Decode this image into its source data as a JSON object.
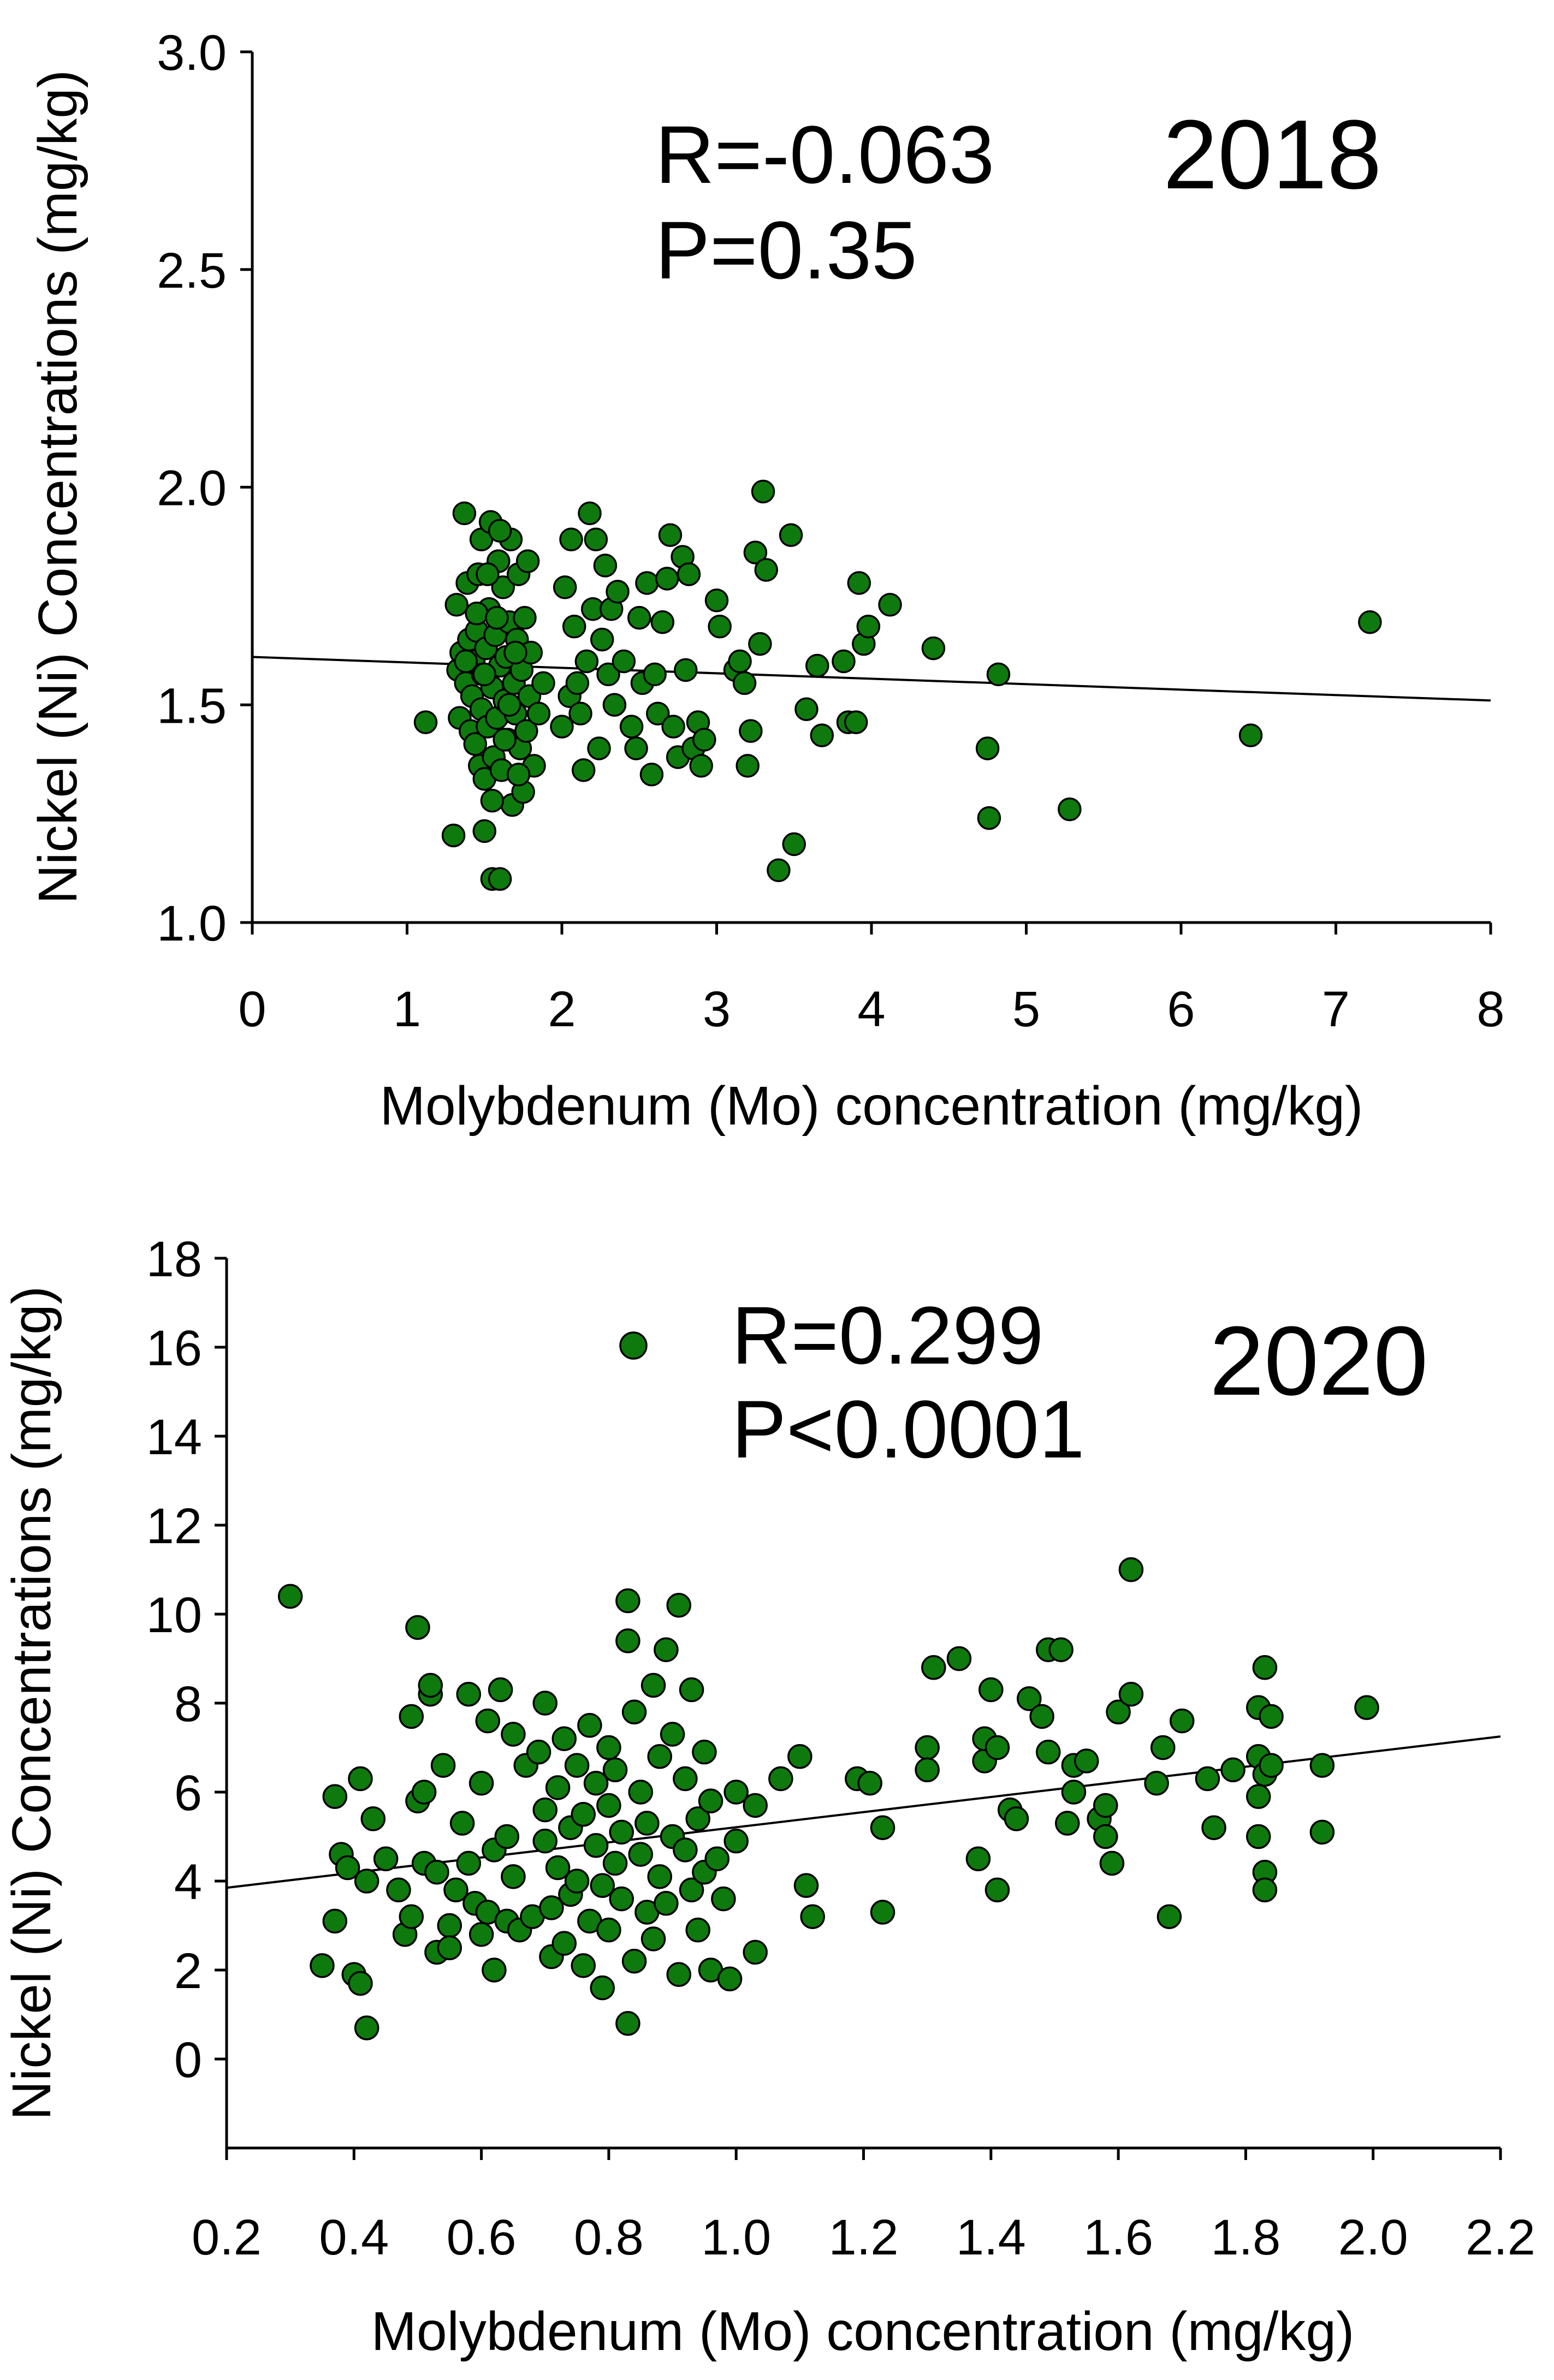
{
  "chart_data": [
    {
      "type": "scatter",
      "year_label": "2018",
      "stats": {
        "r": "R=-0.063",
        "p": "P=0.35"
      },
      "xlabel": "Molybdenum (Mo) concentration (mg/kg)",
      "ylabel": "Nickel (Ni) Concentrations (mg/kg)",
      "xlim": [
        0,
        8
      ],
      "ylim": [
        1.0,
        3.0
      ],
      "x_ticks": [
        0,
        1,
        2,
        3,
        4,
        5,
        6,
        7,
        8
      ],
      "x_tick_labels": [
        "0",
        "1",
        "2",
        "3",
        "4",
        "5",
        "6",
        "7",
        "8"
      ],
      "y_ticks": [
        1.0,
        1.5,
        2.0,
        2.5,
        3.0
      ],
      "y_tick_labels": [
        "1.0",
        "1.5",
        "2.0",
        "2.5",
        "3.0"
      ],
      "trendline": [
        [
          0,
          1.61
        ],
        [
          8,
          1.51
        ]
      ],
      "point_color": "#0e7a0e",
      "points": [
        [
          1.12,
          1.46
        ],
        [
          1.3,
          1.2
        ],
        [
          1.32,
          1.73
        ],
        [
          1.33,
          1.58
        ],
        [
          1.34,
          1.47
        ],
        [
          1.35,
          1.62
        ],
        [
          1.37,
          1.94
        ],
        [
          1.38,
          1.55
        ],
        [
          1.39,
          1.78
        ],
        [
          1.4,
          1.65
        ],
        [
          1.41,
          1.44
        ],
        [
          1.42,
          1.52
        ],
        [
          1.43,
          1.6
        ],
        [
          1.44,
          1.41
        ],
        [
          1.45,
          1.67
        ],
        [
          1.46,
          1.8
        ],
        [
          1.47,
          1.36
        ],
        [
          1.48,
          1.88
        ],
        [
          1.48,
          1.49
        ],
        [
          1.49,
          1.57
        ],
        [
          1.5,
          1.33
        ],
        [
          1.5,
          1.21
        ],
        [
          1.51,
          1.63
        ],
        [
          1.52,
          1.45
        ],
        [
          1.53,
          1.72
        ],
        [
          1.54,
          1.92
        ],
        [
          1.55,
          1.1
        ],
        [
          1.55,
          1.54
        ],
        [
          1.56,
          1.38
        ],
        [
          1.57,
          1.66
        ],
        [
          1.58,
          1.47
        ],
        [
          1.59,
          1.83
        ],
        [
          1.6,
          1.1
        ],
        [
          1.6,
          1.59
        ],
        [
          1.61,
          1.35
        ],
        [
          1.62,
          1.77
        ],
        [
          1.63,
          1.51
        ],
        [
          1.64,
          1.61
        ],
        [
          1.65,
          1.42
        ],
        [
          1.66,
          1.69
        ],
        [
          1.67,
          1.88
        ],
        [
          1.68,
          1.27
        ],
        [
          1.69,
          1.55
        ],
        [
          1.7,
          1.48
        ],
        [
          1.71,
          1.65
        ],
        [
          1.72,
          1.8
        ],
        [
          1.73,
          1.4
        ],
        [
          1.74,
          1.58
        ],
        [
          1.75,
          1.3
        ],
        [
          1.76,
          1.7
        ],
        [
          1.77,
          1.44
        ],
        [
          1.78,
          1.83
        ],
        [
          1.79,
          1.52
        ],
        [
          1.8,
          1.62
        ],
        [
          1.82,
          1.36
        ],
        [
          1.85,
          1.48
        ],
        [
          1.88,
          1.55
        ],
        [
          1.55,
          1.28
        ],
        [
          1.45,
          1.71
        ],
        [
          1.6,
          1.9
        ],
        [
          1.5,
          1.57
        ],
        [
          1.66,
          1.5
        ],
        [
          1.72,
          1.34
        ],
        [
          1.38,
          1.6
        ],
        [
          1.63,
          1.42
        ],
        [
          1.52,
          1.8
        ],
        [
          1.7,
          1.62
        ],
        [
          1.58,
          1.7
        ],
        [
          2.0,
          1.45
        ],
        [
          2.02,
          1.77
        ],
        [
          2.05,
          1.52
        ],
        [
          2.06,
          1.88
        ],
        [
          2.08,
          1.68
        ],
        [
          2.1,
          1.55
        ],
        [
          2.12,
          1.48
        ],
        [
          2.14,
          1.35
        ],
        [
          2.16,
          1.6
        ],
        [
          2.18,
          1.94
        ],
        [
          2.2,
          1.72
        ],
        [
          2.22,
          1.88
        ],
        [
          2.24,
          1.4
        ],
        [
          2.26,
          1.65
        ],
        [
          2.28,
          1.82
        ],
        [
          2.3,
          1.57
        ],
        [
          2.32,
          1.72
        ],
        [
          2.34,
          1.5
        ],
        [
          2.36,
          1.76
        ],
        [
          2.4,
          1.6
        ],
        [
          2.45,
          1.45
        ],
        [
          2.48,
          1.4
        ],
        [
          2.5,
          1.7
        ],
        [
          2.52,
          1.55
        ],
        [
          2.55,
          1.78
        ],
        [
          2.58,
          1.34
        ],
        [
          2.6,
          1.57
        ],
        [
          2.62,
          1.48
        ],
        [
          2.65,
          1.69
        ],
        [
          2.68,
          1.79
        ],
        [
          2.7,
          1.89
        ],
        [
          2.72,
          1.45
        ],
        [
          2.75,
          1.38
        ],
        [
          2.78,
          1.84
        ],
        [
          2.8,
          1.58
        ],
        [
          2.82,
          1.8
        ],
        [
          2.85,
          1.4
        ],
        [
          2.88,
          1.46
        ],
        [
          2.9,
          1.36
        ],
        [
          2.92,
          1.42
        ],
        [
          3.0,
          1.74
        ],
        [
          3.02,
          1.68
        ],
        [
          3.12,
          1.58
        ],
        [
          3.15,
          1.6
        ],
        [
          3.18,
          1.55
        ],
        [
          3.2,
          1.36
        ],
        [
          3.22,
          1.44
        ],
        [
          3.25,
          1.85
        ],
        [
          3.28,
          1.64
        ],
        [
          3.3,
          1.99
        ],
        [
          3.32,
          1.81
        ],
        [
          3.4,
          1.12
        ],
        [
          3.48,
          1.89
        ],
        [
          3.5,
          1.18
        ],
        [
          3.58,
          1.49
        ],
        [
          3.65,
          1.59
        ],
        [
          3.68,
          1.43
        ],
        [
          3.82,
          1.6
        ],
        [
          3.85,
          1.46
        ],
        [
          3.9,
          1.46
        ],
        [
          3.92,
          1.78
        ],
        [
          3.95,
          1.64
        ],
        [
          3.98,
          1.68
        ],
        [
          4.12,
          1.73
        ],
        [
          4.4,
          1.63
        ],
        [
          4.75,
          1.4
        ],
        [
          4.76,
          1.24
        ],
        [
          4.82,
          1.57
        ],
        [
          5.28,
          1.26
        ],
        [
          6.45,
          1.43
        ],
        [
          7.22,
          1.69
        ]
      ]
    },
    {
      "type": "scatter",
      "year_label": "2020",
      "stats": {
        "r": "R=0.299",
        "p": "P<0.0001"
      },
      "xlabel": "Molybdenum (Mo) concentration (mg/kg)",
      "ylabel": "Nickel (Ni) Concentrations (mg/kg)",
      "xlim": [
        0.2,
        2.2
      ],
      "ylim": [
        -2,
        18
      ],
      "x_ticks": [
        0.2,
        0.4,
        0.6,
        0.8,
        1.0,
        1.2,
        1.4,
        1.6,
        1.8,
        2.0,
        2.2
      ],
      "x_tick_labels": [
        "0.2",
        "0.4",
        "0.6",
        "0.8",
        "1.0",
        "1.2",
        "1.4",
        "1.6",
        "1.8",
        "2.0",
        "2.2"
      ],
      "y_ticks": [
        0,
        2,
        4,
        6,
        8,
        10,
        12,
        14,
        16,
        18
      ],
      "y_tick_labels": [
        "0",
        "2",
        "4",
        "6",
        "8",
        "10",
        "12",
        "14",
        "16",
        "18"
      ],
      "trendline": [
        [
          0.2,
          3.85
        ],
        [
          2.2,
          7.25
        ]
      ],
      "point_color": "#0e7a0e",
      "points": [
        [
          0.3,
          10.4
        ],
        [
          0.35,
          2.1
        ],
        [
          0.37,
          3.1
        ],
        [
          0.37,
          5.9
        ],
        [
          0.38,
          4.6
        ],
        [
          0.39,
          4.3
        ],
        [
          0.4,
          1.9
        ],
        [
          0.41,
          1.7
        ],
        [
          0.41,
          6.3
        ],
        [
          0.42,
          0.7
        ],
        [
          0.42,
          4.0
        ],
        [
          0.43,
          5.4
        ],
        [
          0.45,
          4.5
        ],
        [
          0.47,
          3.8
        ],
        [
          0.48,
          2.8
        ],
        [
          0.49,
          3.2
        ],
        [
          0.49,
          7.7
        ],
        [
          0.5,
          9.7
        ],
        [
          0.5,
          5.8
        ],
        [
          0.51,
          4.4
        ],
        [
          0.51,
          6.0
        ],
        [
          0.52,
          8.2
        ],
        [
          0.52,
          8.4
        ],
        [
          0.53,
          2.4
        ],
        [
          0.53,
          4.2
        ],
        [
          0.54,
          6.6
        ],
        [
          0.55,
          3.0
        ],
        [
          0.55,
          2.5
        ],
        [
          0.56,
          3.8
        ],
        [
          0.57,
          5.3
        ],
        [
          0.58,
          8.2
        ],
        [
          0.58,
          4.4
        ],
        [
          0.59,
          3.5
        ],
        [
          0.6,
          2.8
        ],
        [
          0.6,
          6.2
        ],
        [
          0.61,
          7.6
        ],
        [
          0.61,
          3.3
        ],
        [
          0.62,
          4.7
        ],
        [
          0.62,
          2.0
        ],
        [
          0.63,
          8.3
        ],
        [
          0.64,
          5.0
        ],
        [
          0.64,
          3.1
        ],
        [
          0.65,
          7.3
        ],
        [
          0.65,
          4.1
        ],
        [
          0.66,
          2.9
        ],
        [
          0.67,
          6.6
        ],
        [
          0.68,
          3.2
        ],
        [
          0.69,
          6.9
        ],
        [
          0.7,
          5.6
        ],
        [
          0.7,
          4.9
        ],
        [
          0.7,
          8.0
        ],
        [
          0.71,
          2.3
        ],
        [
          0.71,
          3.4
        ],
        [
          0.72,
          6.1
        ],
        [
          0.72,
          4.3
        ],
        [
          0.73,
          7.2
        ],
        [
          0.73,
          2.6
        ],
        [
          0.74,
          5.2
        ],
        [
          0.74,
          3.7
        ],
        [
          0.75,
          6.6
        ],
        [
          0.75,
          4.0
        ],
        [
          0.76,
          2.1
        ],
        [
          0.76,
          5.5
        ],
        [
          0.77,
          7.5
        ],
        [
          0.77,
          3.1
        ],
        [
          0.78,
          4.8
        ],
        [
          0.78,
          6.2
        ],
        [
          0.79,
          1.6
        ],
        [
          0.79,
          3.9
        ],
        [
          0.8,
          5.7
        ],
        [
          0.8,
          7.0
        ],
        [
          0.8,
          2.9
        ],
        [
          0.81,
          4.4
        ],
        [
          0.81,
          6.5
        ],
        [
          0.82,
          3.6
        ],
        [
          0.82,
          5.1
        ],
        [
          0.83,
          10.3
        ],
        [
          0.83,
          0.8
        ],
        [
          0.83,
          9.4
        ],
        [
          0.84,
          2.2
        ],
        [
          0.84,
          7.8
        ],
        [
          0.85,
          4.6
        ],
        [
          0.85,
          6.0
        ],
        [
          0.86,
          3.3
        ],
        [
          0.86,
          5.3
        ],
        [
          0.87,
          8.4
        ],
        [
          0.87,
          2.7
        ],
        [
          0.88,
          4.1
        ],
        [
          0.88,
          6.8
        ],
        [
          0.89,
          9.2
        ],
        [
          0.89,
          3.5
        ],
        [
          0.9,
          5.0
        ],
        [
          0.9,
          7.3
        ],
        [
          0.91,
          10.2
        ],
        [
          0.91,
          1.9
        ],
        [
          0.92,
          4.7
        ],
        [
          0.92,
          6.3
        ],
        [
          0.93,
          3.8
        ],
        [
          0.93,
          8.3
        ],
        [
          0.94,
          5.4
        ],
        [
          0.94,
          2.9
        ],
        [
          0.95,
          4.2
        ],
        [
          0.95,
          6.9
        ],
        [
          0.96,
          2.0
        ],
        [
          0.96,
          5.8
        ],
        [
          0.97,
          4.5
        ],
        [
          0.98,
          3.6
        ],
        [
          0.99,
          1.8
        ],
        [
          1.0,
          4.9
        ],
        [
          1.0,
          6.0
        ],
        [
          1.03,
          2.4
        ],
        [
          1.03,
          5.7
        ],
        [
          1.07,
          6.3
        ],
        [
          1.1,
          6.8
        ],
        [
          1.11,
          3.9
        ],
        [
          1.12,
          3.2
        ],
        [
          1.19,
          6.3
        ],
        [
          1.21,
          6.2
        ],
        [
          1.23,
          5.2
        ],
        [
          1.23,
          3.3
        ],
        [
          1.3,
          7.0
        ],
        [
          1.3,
          6.5
        ],
        [
          1.31,
          8.8
        ],
        [
          1.35,
          9.0
        ],
        [
          1.38,
          4.5
        ],
        [
          1.39,
          6.7
        ],
        [
          1.39,
          7.2
        ],
        [
          1.4,
          8.3
        ],
        [
          1.41,
          7.0
        ],
        [
          1.41,
          3.8
        ],
        [
          1.43,
          5.6
        ],
        [
          1.44,
          5.4
        ],
        [
          1.46,
          8.1
        ],
        [
          1.48,
          7.7
        ],
        [
          1.49,
          9.2
        ],
        [
          1.49,
          6.9
        ],
        [
          1.51,
          9.2
        ],
        [
          1.52,
          5.3
        ],
        [
          1.53,
          6.0
        ],
        [
          1.53,
          6.6
        ],
        [
          1.55,
          6.7
        ],
        [
          1.57,
          5.4
        ],
        [
          1.58,
          5.7
        ],
        [
          1.58,
          5.0
        ],
        [
          1.59,
          4.4
        ],
        [
          1.6,
          7.8
        ],
        [
          1.62,
          11.0
        ],
        [
          1.62,
          8.2
        ],
        [
          1.66,
          6.2
        ],
        [
          1.67,
          7.0
        ],
        [
          1.68,
          3.2
        ],
        [
          1.7,
          7.6
        ],
        [
          1.74,
          6.3
        ],
        [
          1.75,
          5.2
        ],
        [
          1.78,
          6.5
        ],
        [
          1.82,
          7.9
        ],
        [
          1.82,
          6.8
        ],
        [
          1.82,
          5.9
        ],
        [
          1.82,
          5.0
        ],
        [
          1.83,
          6.4
        ],
        [
          1.83,
          4.2
        ],
        [
          1.83,
          3.8
        ],
        [
          1.83,
          8.8
        ],
        [
          1.84,
          7.7
        ],
        [
          1.84,
          6.6
        ],
        [
          1.92,
          6.6
        ],
        [
          1.92,
          5.1
        ],
        [
          1.99,
          7.9
        ]
      ]
    }
  ]
}
